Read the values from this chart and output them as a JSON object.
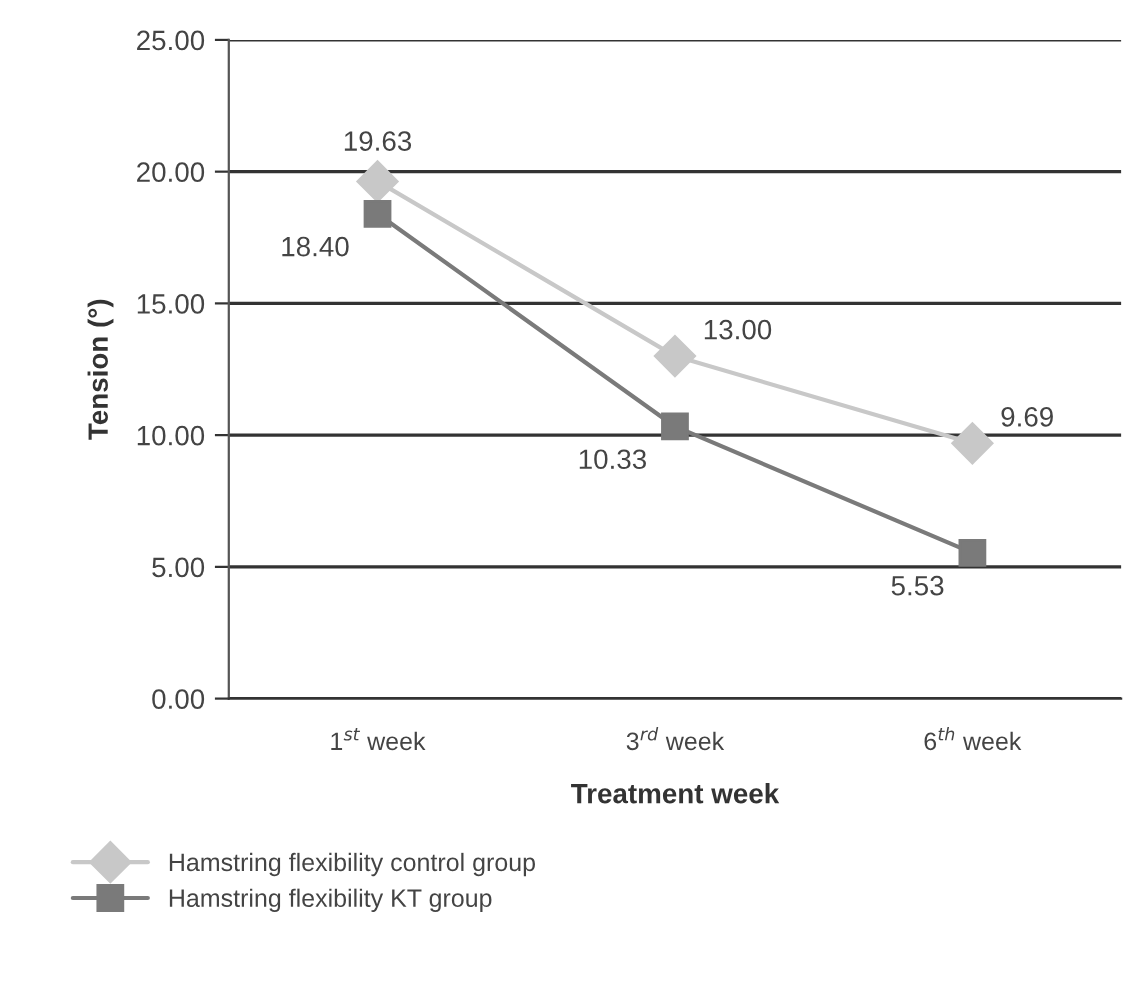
{
  "chart_data": {
    "type": "line",
    "xlabel": "Treatment week",
    "ylabel": "Tension (°)",
    "categories": [
      "1$^{st}$ week",
      "3$^{rd}$ week",
      "6$^{th}$ week"
    ],
    "series": [
      {
        "name": "Hamstring flexibility control group",
        "color": "#c8c8c8",
        "marker": "diamond",
        "values": [
          19.63,
          13.0,
          9.69
        ],
        "value_labels": [
          "19.63",
          "13.00",
          "9.69"
        ]
      },
      {
        "name": "Hamstring flexibility KT group",
        "color": "#7a7a7a",
        "marker": "square",
        "values": [
          18.4,
          10.33,
          5.53
        ],
        "value_labels": [
          "18.40",
          "10.33",
          "5.53"
        ]
      }
    ],
    "ylim": [
      0,
      25
    ],
    "yticks": [
      {
        "value": 0,
        "label": "0.00"
      },
      {
        "value": 5,
        "label": "5.00"
      },
      {
        "value": 10,
        "label": "10.00"
      },
      {
        "value": 15,
        "label": "15.00"
      },
      {
        "value": 20,
        "label": "20.00"
      },
      {
        "value": 25,
        "label": "25.00"
      }
    ],
    "grid": "y",
    "legend": "bottom"
  }
}
